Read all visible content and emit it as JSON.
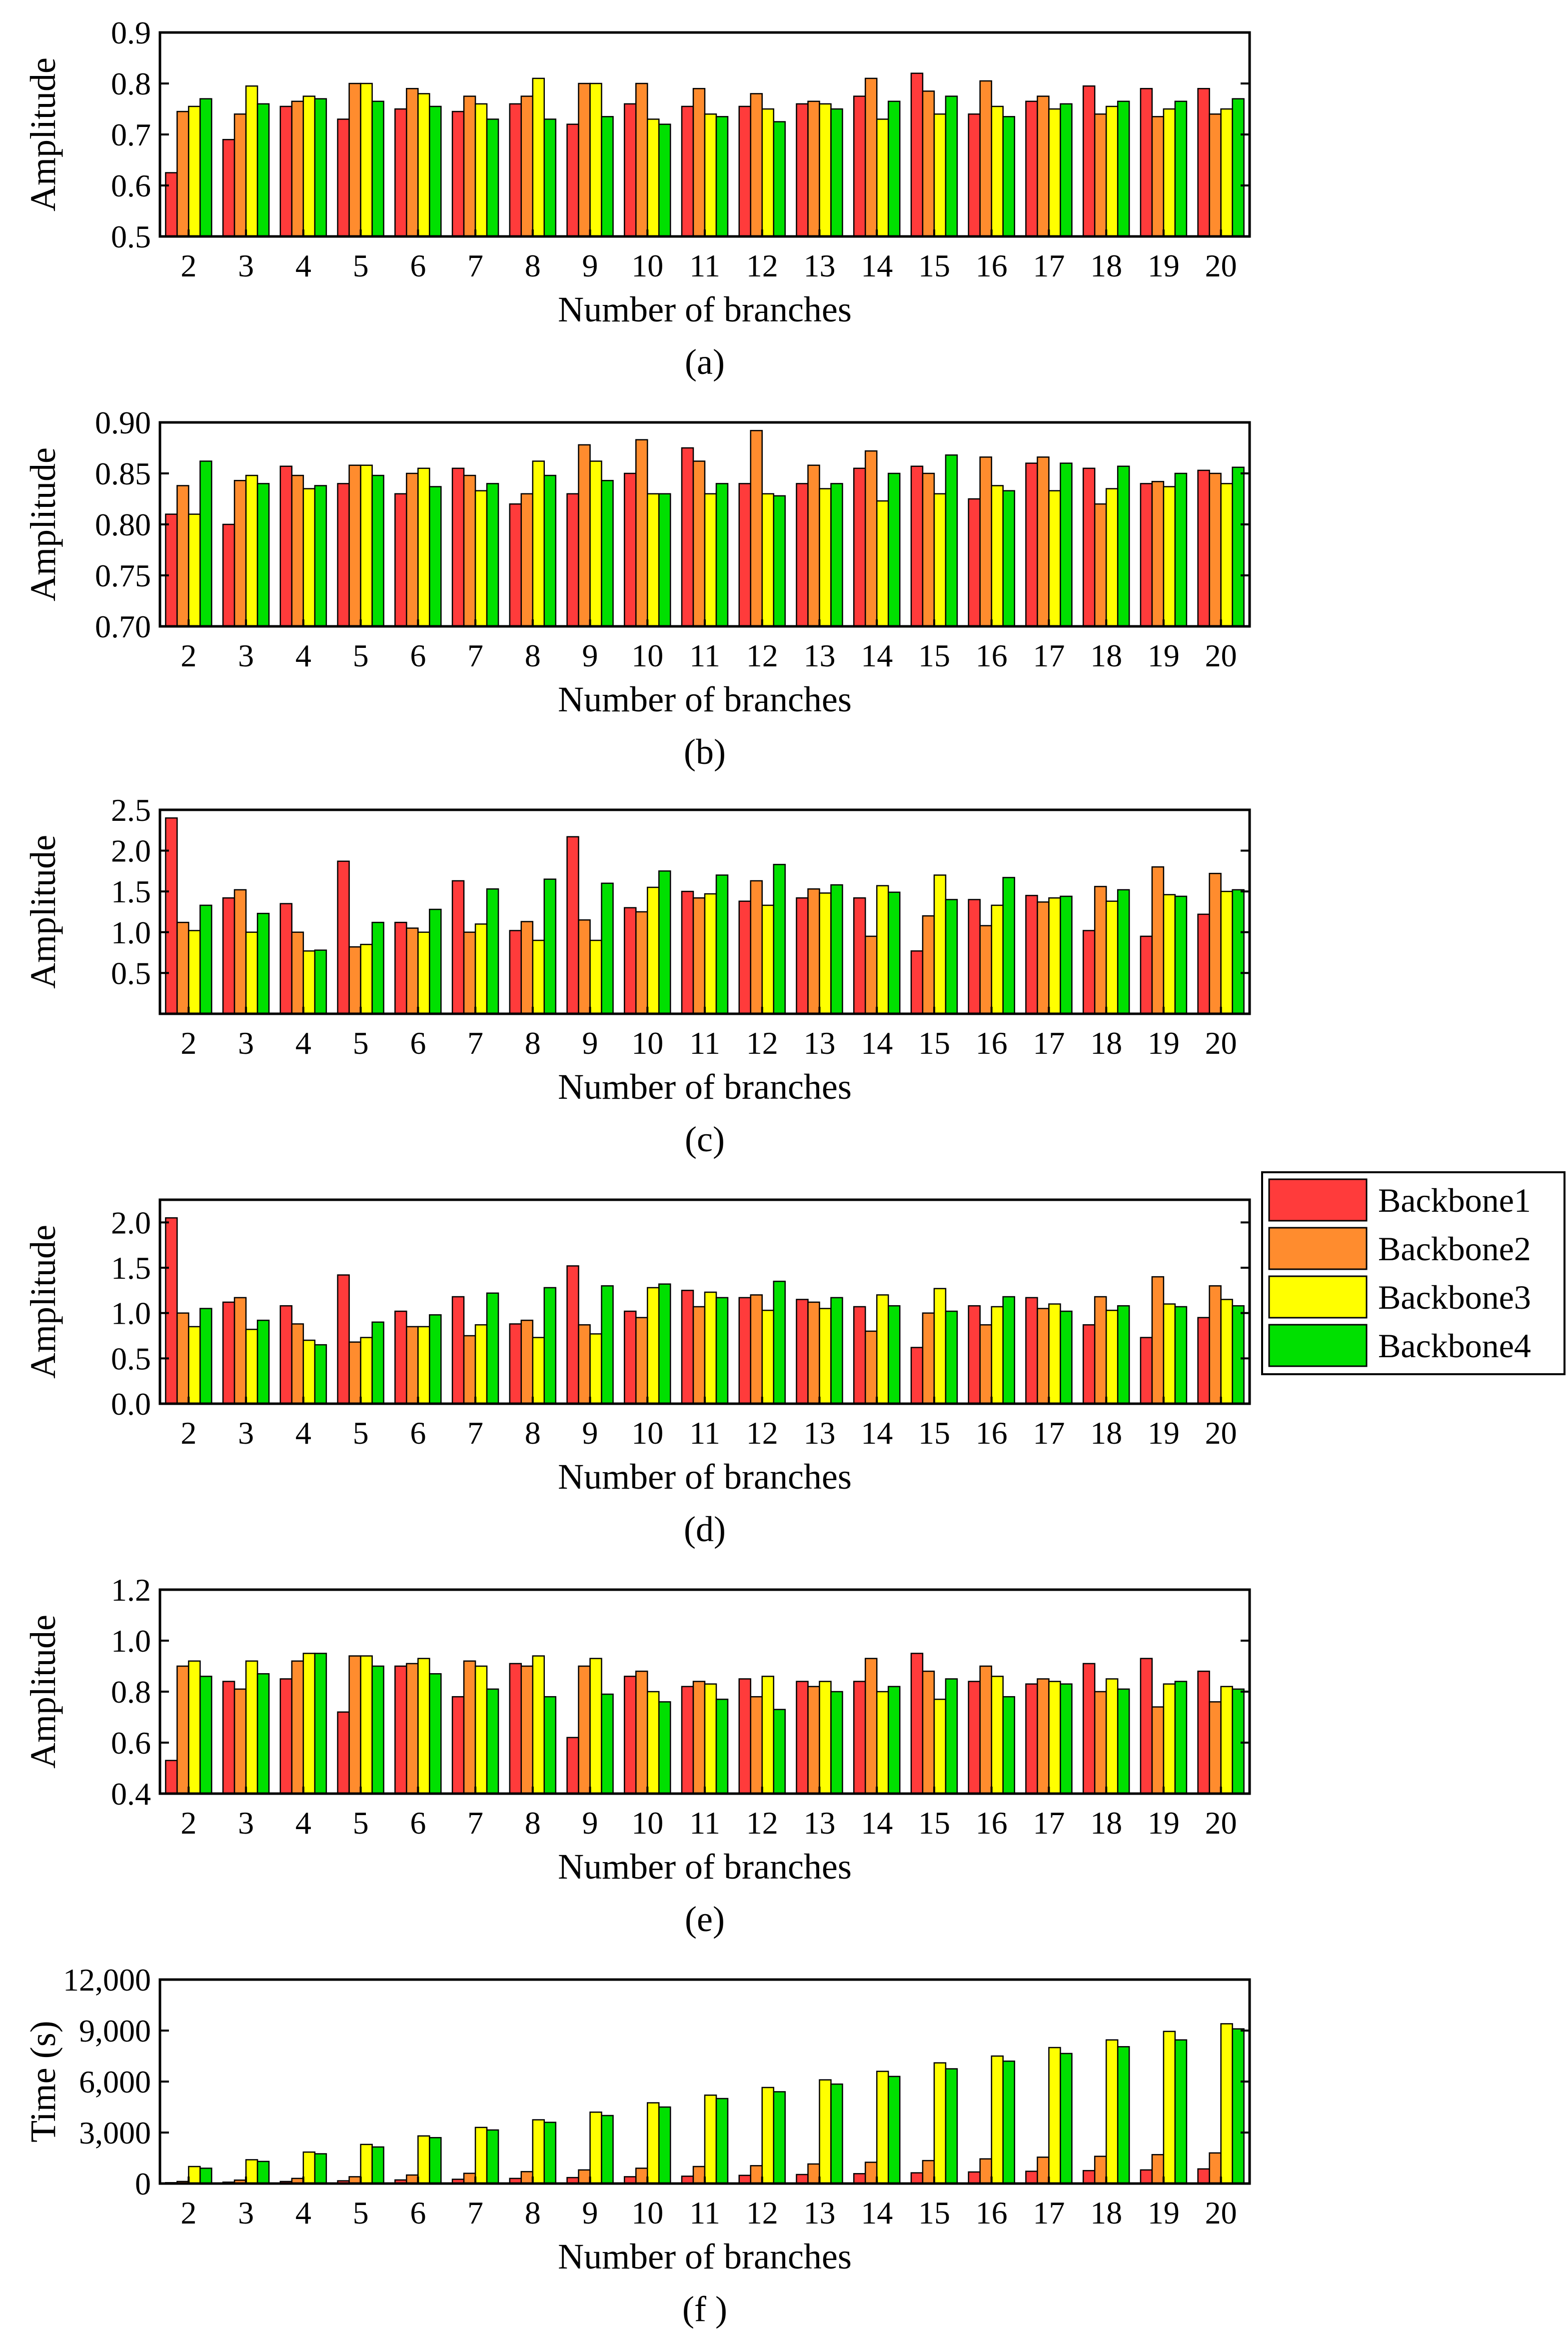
{
  "legend": {
    "entries": [
      "Backbone1",
      "Backbone2",
      "Backbone3",
      "Backbone4"
    ],
    "colors": [
      "#ff3b3b",
      "#ff8c2e",
      "#ffff00",
      "#00e000"
    ]
  },
  "chart_data": [
    {
      "type": "bar",
      "panel_label": "(a)",
      "xlabel": "Number of branches",
      "ylabel": "Amplitude",
      "categories": [
        "2",
        "3",
        "4",
        "5",
        "6",
        "7",
        "8",
        "9",
        "10",
        "11",
        "12",
        "13",
        "14",
        "15",
        "16",
        "17",
        "18",
        "19",
        "20"
      ],
      "ylim": [
        0.5,
        0.9
      ],
      "yticks": [
        "0.5",
        "0.6",
        "0.7",
        "0.8",
        "0.9"
      ],
      "series": [
        {
          "name": "Backbone1",
          "values": [
            0.625,
            0.69,
            0.755,
            0.73,
            0.75,
            0.745,
            0.76,
            0.72,
            0.76,
            0.755,
            0.755,
            0.76,
            0.775,
            0.82,
            0.74,
            0.765,
            0.795,
            0.79,
            0.79
          ]
        },
        {
          "name": "Backbone2",
          "values": [
            0.745,
            0.74,
            0.765,
            0.8,
            0.79,
            0.775,
            0.775,
            0.8,
            0.8,
            0.79,
            0.78,
            0.765,
            0.81,
            0.785,
            0.805,
            0.775,
            0.74,
            0.735,
            0.74
          ]
        },
        {
          "name": "Backbone3",
          "values": [
            0.755,
            0.795,
            0.775,
            0.8,
            0.78,
            0.76,
            0.81,
            0.8,
            0.73,
            0.74,
            0.75,
            0.76,
            0.73,
            0.74,
            0.755,
            0.75,
            0.755,
            0.75,
            0.75
          ]
        },
        {
          "name": "Backbone4",
          "values": [
            0.77,
            0.76,
            0.77,
            0.765,
            0.755,
            0.73,
            0.73,
            0.735,
            0.72,
            0.735,
            0.725,
            0.75,
            0.765,
            0.775,
            0.735,
            0.76,
            0.765,
            0.765,
            0.77
          ]
        }
      ]
    },
    {
      "type": "bar",
      "panel_label": "(b)",
      "xlabel": "Number of branches",
      "ylabel": "Amplitude",
      "categories": [
        "2",
        "3",
        "4",
        "5",
        "6",
        "7",
        "8",
        "9",
        "10",
        "11",
        "12",
        "13",
        "14",
        "15",
        "16",
        "17",
        "18",
        "19",
        "20"
      ],
      "ylim": [
        0.7,
        0.9
      ],
      "yticks": [
        "0.70",
        "0.75",
        "0.80",
        "0.85",
        "0.90"
      ],
      "series": [
        {
          "name": "Backbone1",
          "values": [
            0.81,
            0.8,
            0.857,
            0.84,
            0.83,
            0.855,
            0.82,
            0.83,
            0.85,
            0.875,
            0.84,
            0.84,
            0.855,
            0.857,
            0.825,
            0.86,
            0.855,
            0.84,
            0.853
          ]
        },
        {
          "name": "Backbone2",
          "values": [
            0.838,
            0.843,
            0.848,
            0.858,
            0.85,
            0.848,
            0.83,
            0.878,
            0.883,
            0.862,
            0.892,
            0.858,
            0.872,
            0.85,
            0.866,
            0.866,
            0.82,
            0.842,
            0.85
          ]
        },
        {
          "name": "Backbone3",
          "values": [
            0.81,
            0.848,
            0.835,
            0.858,
            0.855,
            0.833,
            0.862,
            0.862,
            0.83,
            0.83,
            0.83,
            0.835,
            0.823,
            0.83,
            0.838,
            0.833,
            0.835,
            0.837,
            0.84
          ]
        },
        {
          "name": "Backbone4",
          "values": [
            0.862,
            0.84,
            0.838,
            0.848,
            0.837,
            0.84,
            0.848,
            0.843,
            0.83,
            0.84,
            0.828,
            0.84,
            0.85,
            0.868,
            0.833,
            0.86,
            0.857,
            0.85,
            0.856
          ]
        }
      ]
    },
    {
      "type": "bar",
      "panel_label": "(c)",
      "xlabel": "Number of branches",
      "ylabel": "Amplitude",
      "categories": [
        "2",
        "3",
        "4",
        "5",
        "6",
        "7",
        "8",
        "9",
        "10",
        "11",
        "12",
        "13",
        "14",
        "15",
        "16",
        "17",
        "18",
        "19",
        "20"
      ],
      "ylim": [
        0.0,
        2.5
      ],
      "yticks": [
        "0.5",
        "1.0",
        "1.5",
        "2.0",
        "2.5"
      ],
      "series": [
        {
          "name": "Backbone1",
          "values": [
            2.4,
            1.42,
            1.35,
            1.87,
            1.12,
            1.63,
            1.02,
            2.17,
            1.3,
            1.5,
            1.38,
            1.42,
            1.42,
            0.77,
            1.4,
            1.45,
            1.02,
            0.95,
            1.22
          ]
        },
        {
          "name": "Backbone2",
          "values": [
            1.12,
            1.52,
            1.0,
            0.82,
            1.05,
            1.0,
            1.13,
            1.15,
            1.25,
            1.42,
            1.63,
            1.53,
            0.95,
            1.2,
            1.08,
            1.37,
            1.56,
            1.8,
            1.72
          ]
        },
        {
          "name": "Backbone3",
          "values": [
            1.02,
            1.0,
            0.77,
            0.85,
            1.0,
            1.1,
            0.9,
            0.9,
            1.55,
            1.47,
            1.33,
            1.48,
            1.57,
            1.7,
            1.33,
            1.42,
            1.38,
            1.46,
            1.5
          ]
        },
        {
          "name": "Backbone4",
          "values": [
            1.33,
            1.23,
            0.78,
            1.12,
            1.28,
            1.53,
            1.65,
            1.6,
            1.75,
            1.7,
            1.83,
            1.58,
            1.49,
            1.4,
            1.67,
            1.44,
            1.52,
            1.44,
            1.52
          ]
        }
      ]
    },
    {
      "type": "bar",
      "panel_label": "(d)",
      "xlabel": "Number of branches",
      "ylabel": "Amplitude",
      "categories": [
        "2",
        "3",
        "4",
        "5",
        "6",
        "7",
        "8",
        "9",
        "10",
        "11",
        "12",
        "13",
        "14",
        "15",
        "16",
        "17",
        "18",
        "19",
        "20"
      ],
      "ylim": [
        0.0,
        2.25
      ],
      "yticks": [
        "0.0",
        "0.5",
        "1.0",
        "1.5",
        "2.0"
      ],
      "series": [
        {
          "name": "Backbone1",
          "values": [
            2.05,
            1.12,
            1.08,
            1.42,
            1.02,
            1.18,
            0.88,
            1.52,
            1.02,
            1.25,
            1.17,
            1.15,
            1.07,
            0.62,
            1.08,
            1.17,
            0.87,
            0.73,
            0.95
          ]
        },
        {
          "name": "Backbone2",
          "values": [
            1.0,
            1.17,
            0.88,
            0.68,
            0.85,
            0.75,
            0.92,
            0.87,
            0.95,
            1.07,
            1.2,
            1.12,
            0.8,
            1.0,
            0.87,
            1.05,
            1.18,
            1.4,
            1.3
          ]
        },
        {
          "name": "Backbone3",
          "values": [
            0.85,
            0.82,
            0.7,
            0.73,
            0.85,
            0.87,
            0.73,
            0.77,
            1.28,
            1.23,
            1.03,
            1.05,
            1.2,
            1.27,
            1.07,
            1.1,
            1.03,
            1.1,
            1.15
          ]
        },
        {
          "name": "Backbone4",
          "values": [
            1.05,
            0.92,
            0.65,
            0.9,
            0.98,
            1.22,
            1.28,
            1.3,
            1.32,
            1.17,
            1.35,
            1.17,
            1.08,
            1.02,
            1.18,
            1.02,
            1.08,
            1.07,
            1.08
          ]
        }
      ]
    },
    {
      "type": "bar",
      "panel_label": "(e)",
      "xlabel": "Number of branches",
      "ylabel": "Amplitude",
      "categories": [
        "2",
        "3",
        "4",
        "5",
        "6",
        "7",
        "8",
        "9",
        "10",
        "11",
        "12",
        "13",
        "14",
        "15",
        "16",
        "17",
        "18",
        "19",
        "20"
      ],
      "ylim": [
        0.4,
        1.2
      ],
      "yticks": [
        "0.4",
        "0.6",
        "0.8",
        "1.0",
        "1.2"
      ],
      "series": [
        {
          "name": "Backbone1",
          "values": [
            0.53,
            0.84,
            0.85,
            0.72,
            0.9,
            0.78,
            0.91,
            0.62,
            0.86,
            0.82,
            0.85,
            0.84,
            0.84,
            0.95,
            0.84,
            0.83,
            0.91,
            0.93,
            0.88
          ]
        },
        {
          "name": "Backbone2",
          "values": [
            0.9,
            0.81,
            0.92,
            0.94,
            0.91,
            0.92,
            0.9,
            0.9,
            0.88,
            0.84,
            0.78,
            0.82,
            0.93,
            0.88,
            0.9,
            0.85,
            0.8,
            0.74,
            0.76
          ]
        },
        {
          "name": "Backbone3",
          "values": [
            0.92,
            0.92,
            0.95,
            0.94,
            0.93,
            0.9,
            0.94,
            0.93,
            0.8,
            0.83,
            0.86,
            0.84,
            0.8,
            0.77,
            0.86,
            0.84,
            0.85,
            0.83,
            0.82
          ]
        },
        {
          "name": "Backbone4",
          "values": [
            0.86,
            0.87,
            0.95,
            0.9,
            0.87,
            0.81,
            0.78,
            0.79,
            0.76,
            0.77,
            0.73,
            0.8,
            0.82,
            0.85,
            0.78,
            0.83,
            0.81,
            0.84,
            0.81
          ]
        }
      ]
    },
    {
      "type": "bar",
      "panel_label": "(f )",
      "xlabel": "Number of branches",
      "ylabel": "Time (s)",
      "categories": [
        "2",
        "3",
        "4",
        "5",
        "6",
        "7",
        "8",
        "9",
        "10",
        "11",
        "12",
        "13",
        "14",
        "15",
        "16",
        "17",
        "18",
        "19",
        "20"
      ],
      "ylim": [
        0,
        12000
      ],
      "yticks": [
        "0",
        "3,000",
        "6,000",
        "9,000",
        "12,000"
      ],
      "series": [
        {
          "name": "Backbone1",
          "values": [
            50,
            80,
            120,
            160,
            210,
            250,
            300,
            350,
            400,
            430,
            480,
            530,
            580,
            630,
            680,
            720,
            760,
            800,
            860
          ]
        },
        {
          "name": "Backbone2",
          "values": [
            120,
            200,
            300,
            400,
            500,
            600,
            700,
            800,
            900,
            1000,
            1050,
            1150,
            1250,
            1350,
            1450,
            1550,
            1600,
            1700,
            1800
          ]
        },
        {
          "name": "Backbone3",
          "values": [
            1000,
            1400,
            1850,
            2300,
            2800,
            3300,
            3750,
            4200,
            4750,
            5200,
            5650,
            6100,
            6600,
            7100,
            7500,
            8000,
            8450,
            8950,
            9400
          ]
        },
        {
          "name": "Backbone4",
          "values": [
            900,
            1300,
            1750,
            2150,
            2700,
            3150,
            3600,
            4000,
            4500,
            5000,
            5400,
            5850,
            6300,
            6750,
            7200,
            7650,
            8050,
            8450,
            9100
          ]
        }
      ]
    }
  ]
}
